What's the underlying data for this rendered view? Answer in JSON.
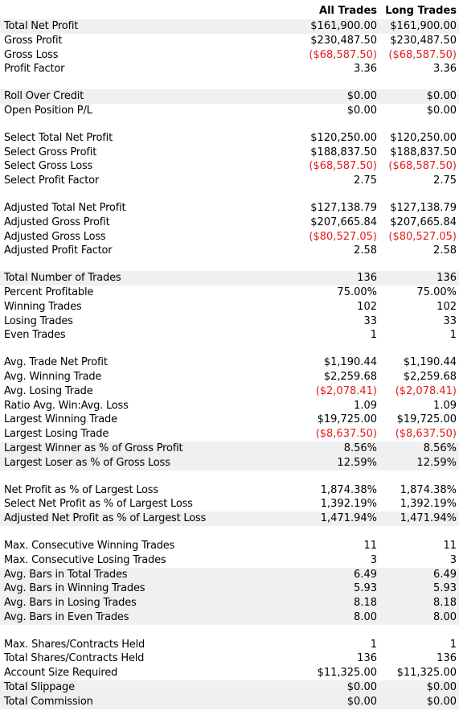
{
  "header": {
    "col1": "All Trades",
    "col2": "Long Trades"
  },
  "groups": [
    [
      {
        "label": "Total Net Profit",
        "all": "$161,900.00",
        "long": "$161,900.00"
      },
      {
        "label": "Gross Profit",
        "all": "$230,487.50",
        "long": "$230,487.50"
      },
      {
        "label": "Gross Loss",
        "all": "($68,587.50)",
        "long": "($68,587.50)",
        "negative": true
      },
      {
        "label": "Profit Factor",
        "all": "3.36",
        "long": "3.36"
      }
    ],
    [
      {
        "label": "Roll Over Credit",
        "all": "$0.00",
        "long": "$0.00"
      },
      {
        "label": "Open Position P/L",
        "all": "$0.00",
        "long": "$0.00"
      }
    ],
    [
      {
        "label": "Select Total Net Profit",
        "all": "$120,250.00",
        "long": "$120,250.00"
      },
      {
        "label": "Select Gross Profit",
        "all": "$188,837.50",
        "long": "$188,837.50"
      },
      {
        "label": "Select Gross Loss",
        "all": "($68,587.50)",
        "long": "($68,587.50)",
        "negative": true
      },
      {
        "label": "Select Profit Factor",
        "all": "2.75",
        "long": "2.75"
      }
    ],
    [
      {
        "label": "Adjusted Total Net Profit",
        "all": "$127,138.79",
        "long": "$127,138.79"
      },
      {
        "label": "Adjusted Gross Profit",
        "all": "$207,665.84",
        "long": "$207,665.84"
      },
      {
        "label": "Adjusted Gross Loss",
        "all": "($80,527.05)",
        "long": "($80,527.05)",
        "negative": true
      },
      {
        "label": "Adjusted Profit Factor",
        "all": "2.58",
        "long": "2.58"
      }
    ],
    [
      {
        "label": "Total Number of Trades",
        "all": "136",
        "long": "136"
      },
      {
        "label": "Percent Profitable",
        "all": "75.00%",
        "long": "75.00%"
      },
      {
        "label": "Winning Trades",
        "all": "102",
        "long": "102"
      },
      {
        "label": "Losing Trades",
        "all": "33",
        "long": "33"
      },
      {
        "label": "Even Trades",
        "all": "1",
        "long": "1"
      }
    ],
    [
      {
        "label": "Avg. Trade Net Profit",
        "all": "$1,190.44",
        "long": "$1,190.44"
      },
      {
        "label": "Avg. Winning Trade",
        "all": "$2,259.68",
        "long": "$2,259.68"
      },
      {
        "label": "Avg. Losing Trade",
        "all": "($2,078.41)",
        "long": "($2,078.41)",
        "negative": true
      },
      {
        "label": "Ratio Avg. Win:Avg. Loss",
        "all": "1.09",
        "long": "1.09"
      },
      {
        "label": "Largest Winning Trade",
        "all": "$19,725.00",
        "long": "$19,725.00"
      },
      {
        "label": "Largest Losing Trade",
        "all": "($8,637.50)",
        "long": "($8,637.50)",
        "negative": true
      },
      {
        "label": "Largest Winner as % of Gross Profit",
        "all": "8.56%",
        "long": "8.56%"
      },
      {
        "label": "Largest Loser as % of Gross Loss",
        "all": "12.59%",
        "long": "12.59%"
      }
    ],
    [
      {
        "label": "Net Profit as % of Largest Loss",
        "all": "1,874.38%",
        "long": "1,874.38%"
      },
      {
        "label": "Select Net Profit as % of Largest Loss",
        "all": "1,392.19%",
        "long": "1,392.19%"
      },
      {
        "label": "Adjusted Net Profit as % of Largest Loss",
        "all": "1,471.94%",
        "long": "1,471.94%"
      }
    ],
    [
      {
        "label": "Max. Consecutive Winning Trades",
        "all": "11",
        "long": "11"
      },
      {
        "label": "Max. Consecutive Losing Trades",
        "all": "3",
        "long": "3"
      },
      {
        "label": "Avg. Bars in Total Trades",
        "all": "6.49",
        "long": "6.49"
      },
      {
        "label": "Avg. Bars in Winning Trades",
        "all": "5.93",
        "long": "5.93"
      },
      {
        "label": "Avg. Bars in Losing Trades",
        "all": "8.18",
        "long": "8.18"
      },
      {
        "label": "Avg. Bars in Even Trades",
        "all": "8.00",
        "long": "8.00"
      }
    ],
    [
      {
        "label": "Max. Shares/Contracts Held",
        "all": "1",
        "long": "1"
      },
      {
        "label": "Total Shares/Contracts Held",
        "all": "136",
        "long": "136"
      },
      {
        "label": "Account Size Required",
        "all": "$11,325.00",
        "long": "$11,325.00"
      },
      {
        "label": "Total Slippage",
        "all": "$0.00",
        "long": "$0.00"
      },
      {
        "label": "Total Commission",
        "all": "$0.00",
        "long": "$0.00"
      }
    ]
  ],
  "colors": {
    "negative": "#e31b1b",
    "shade": "#f0f0f0"
  }
}
